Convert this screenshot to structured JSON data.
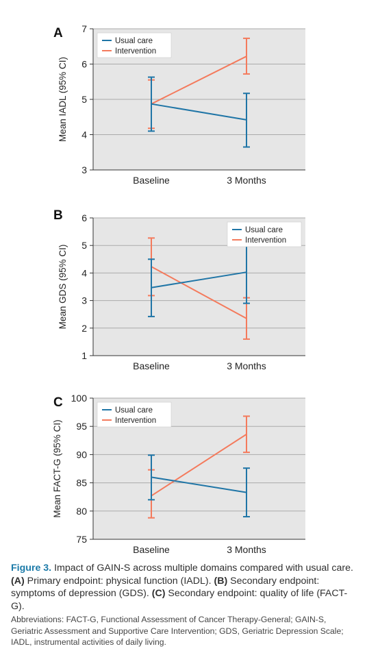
{
  "colors": {
    "usual_care": "#1f75a6",
    "intervention": "#f47a5c",
    "plot_bg": "#e6e6e6",
    "gridline": "#aaaaaa",
    "figure_label": "#1b7aa8"
  },
  "chart_data": [
    {
      "panel": "A",
      "type": "line",
      "categories": [
        "Baseline",
        "3 Months"
      ],
      "ylabel": "Mean IADL (95% CI)",
      "xlabel": "",
      "ylim": [
        3,
        7
      ],
      "yticks": [
        3,
        4,
        5,
        6,
        7
      ],
      "grid": true,
      "legend_position": "top-left",
      "series": [
        {
          "name": "Usual care",
          "values": [
            4.87,
            4.42
          ],
          "lower": [
            4.1,
            3.65
          ],
          "upper": [
            5.63,
            5.17
          ]
        },
        {
          "name": "Intervention",
          "values": [
            4.87,
            6.22
          ],
          "lower": [
            4.18,
            5.72
          ],
          "upper": [
            5.55,
            6.73
          ]
        }
      ]
    },
    {
      "panel": "B",
      "type": "line",
      "categories": [
        "Baseline",
        "3 Months"
      ],
      "ylabel": "Mean GDS (95% CI)",
      "xlabel": "",
      "ylim": [
        1,
        6
      ],
      "yticks": [
        1,
        2,
        3,
        4,
        5,
        6
      ],
      "grid": true,
      "legend_position": "top-right",
      "series": [
        {
          "name": "Usual care",
          "values": [
            3.47,
            4.03
          ],
          "lower": [
            2.42,
            2.9
          ],
          "upper": [
            4.5,
            5.16
          ]
        },
        {
          "name": "Intervention",
          "values": [
            4.23,
            2.35
          ],
          "lower": [
            3.18,
            1.6
          ],
          "upper": [
            5.27,
            3.1
          ]
        }
      ]
    },
    {
      "panel": "C",
      "type": "line",
      "categories": [
        "Baseline",
        "3 Months"
      ],
      "ylabel": "Mean FACT-G (95% CI)",
      "xlabel": "",
      "ylim": [
        75,
        100
      ],
      "yticks": [
        75,
        80,
        85,
        90,
        95,
        100
      ],
      "grid": true,
      "legend_position": "top-left",
      "series": [
        {
          "name": "Usual care",
          "values": [
            86.0,
            83.3
          ],
          "lower": [
            82.0,
            79.0
          ],
          "upper": [
            89.9,
            87.6
          ]
        },
        {
          "name": "Intervention",
          "values": [
            82.7,
            93.6
          ],
          "lower": [
            78.8,
            90.4
          ],
          "upper": [
            87.3,
            96.8
          ]
        }
      ]
    }
  ],
  "caption": {
    "figure_label": "Figure 3.",
    "text_1": " Impact of GAIN-S across multiple domains compared with usual care. ",
    "ref_a": "(A)",
    "text_2": " Primary endpoint: physical function (IADL). ",
    "ref_b": "(B)",
    "text_3": " Secondary endpoint: symptoms of depression (GDS). ",
    "ref_c": "(C)",
    "text_4": " Secondary endpoint: quality of life (FACT-G).",
    "abbreviations": "Abbreviations: FACT-G, Functional Assessment of Cancer Therapy-General; GAIN-S, Geriatric Assessment and Supportive Care Intervention; GDS, Geriatric Depression Scale; IADL, instrumental activities of daily living."
  }
}
